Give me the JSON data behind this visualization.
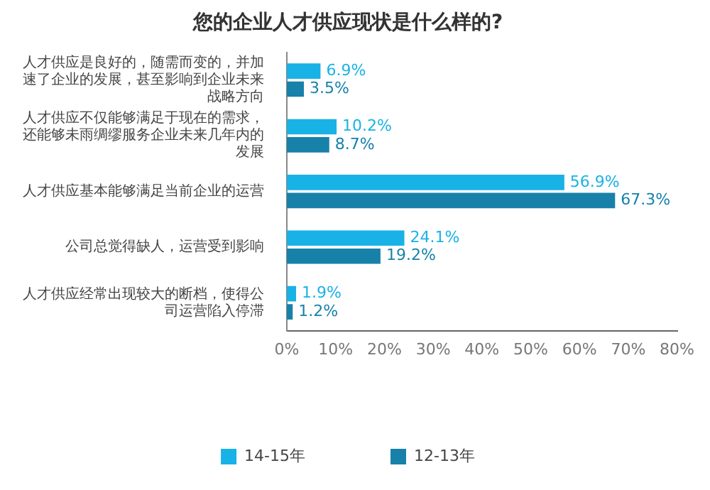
{
  "chart_data": {
    "type": "bar",
    "orientation": "horizontal",
    "title": "您的企业人才供应现状是什么样的?",
    "categories": [
      "人才供应是良好的，随需而变的，并加速了企业的发展，甚至影响到企业未来战略方向",
      "人才供应不仅能够满足于现在的需求，还能够未雨绸缪服务企业未来几年内的发展",
      "人才供应基本能够满足当前企业的运营",
      "公司总觉得缺人，运营受到影响",
      "人才供应经常出现较大的断档，使得公司运营陷入停滞"
    ],
    "series": [
      {
        "name": "14-15年",
        "color": "#19b2e6",
        "values": [
          6.9,
          10.2,
          56.9,
          24.1,
          1.9
        ],
        "value_labels": [
          "6.9%",
          "10.2%",
          "56.9%",
          "24.1%",
          "1.9%"
        ]
      },
      {
        "name": "12-13年",
        "color": "#1781aa",
        "values": [
          3.5,
          8.7,
          67.3,
          19.2,
          1.2
        ],
        "value_labels": [
          "3.5%",
          "8.7%",
          "67.3%",
          "19.2%",
          "1.2%"
        ]
      }
    ],
    "xlim": [
      0,
      80
    ],
    "xticks": [
      {
        "value": 0,
        "label": "0%"
      },
      {
        "value": 10,
        "label": "10%"
      },
      {
        "value": 20,
        "label": "20%"
      },
      {
        "value": 30,
        "label": "30%"
      },
      {
        "value": 40,
        "label": "40%"
      },
      {
        "value": 50,
        "label": "50%"
      },
      {
        "value": 60,
        "label": "60%"
      },
      {
        "value": 70,
        "label": "70%"
      },
      {
        "value": 80,
        "label": "80%"
      }
    ],
    "legend": "bottom",
    "grid": false
  }
}
